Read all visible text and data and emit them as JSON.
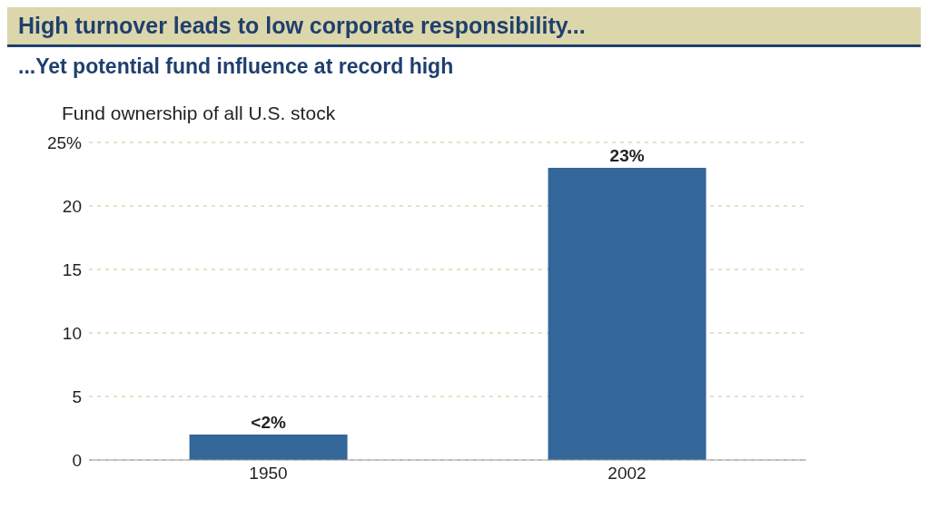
{
  "chart_data": {
    "type": "bar",
    "title": "High turnover leads to low corporate responsibility...",
    "subtitle": "...Yet potential fund influence at record high",
    "ylabel": "Fund ownership of all U.S. stock",
    "categories": [
      "1950",
      "2002"
    ],
    "values": [
      2,
      23
    ],
    "value_labels": [
      "<2%",
      "23%"
    ],
    "color": "#336699",
    "ylim": [
      0,
      25
    ],
    "yticks": [
      0,
      5,
      10,
      15,
      20,
      {
        "value": 25,
        "label": "25%"
      }
    ],
    "grid": "y",
    "legend": false
  }
}
